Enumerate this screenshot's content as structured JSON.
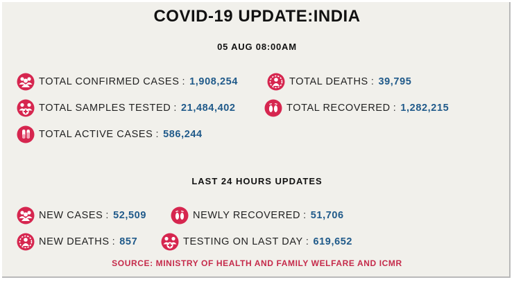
{
  "title": "COVID-19 UPDATE:INDIA",
  "date": "05 AUG 08:00AM",
  "colors": {
    "accent": "#d6264f",
    "value": "#205a8a",
    "source": "#c52a4a",
    "background": "#f1f0eb"
  },
  "totals": {
    "confirmed": {
      "label": "TOTAL CONFIRMED CASES",
      "sep": ":",
      "value": "1,908,254",
      "icon": "people-icon"
    },
    "deaths": {
      "label": "TOTAL DEATHS",
      "sep": ":",
      "value": "39,795",
      "icon": "virus-person-icon"
    },
    "samples": {
      "label": "TOTAL SAMPLES TESTED",
      "sep": ":",
      "value": "21,484,402",
      "icon": "people-medical-icon"
    },
    "recovered": {
      "label": "TOTAL RECOVERED",
      "sep": ":",
      "value": "1,282,215",
      "icon": "footprints-icon"
    },
    "active": {
      "label": "TOTAL ACTIVE CASES",
      "sep": ":",
      "value": "586,244",
      "icon": "test-tube-icon"
    }
  },
  "last24": {
    "heading": "LAST 24 HOURS UPDATES",
    "new_cases": {
      "label": "NEW CASES",
      "sep": ":",
      "value": "52,509",
      "icon": "people-icon"
    },
    "newly_recovered": {
      "label": "NEWLY RECOVERED",
      "sep": ":",
      "value": "51,706",
      "icon": "footprints-icon"
    },
    "new_deaths": {
      "label": "NEW DEATHS",
      "sep": ":",
      "value": "857",
      "icon": "virus-person-icon"
    },
    "testing": {
      "label": "TESTING ON LAST DAY",
      "sep": ":",
      "value": "619,652",
      "icon": "people-medical-icon"
    }
  },
  "source": "SOURCE: MINISTRY OF HEALTH AND FAMILY WELFARE AND ICMR"
}
